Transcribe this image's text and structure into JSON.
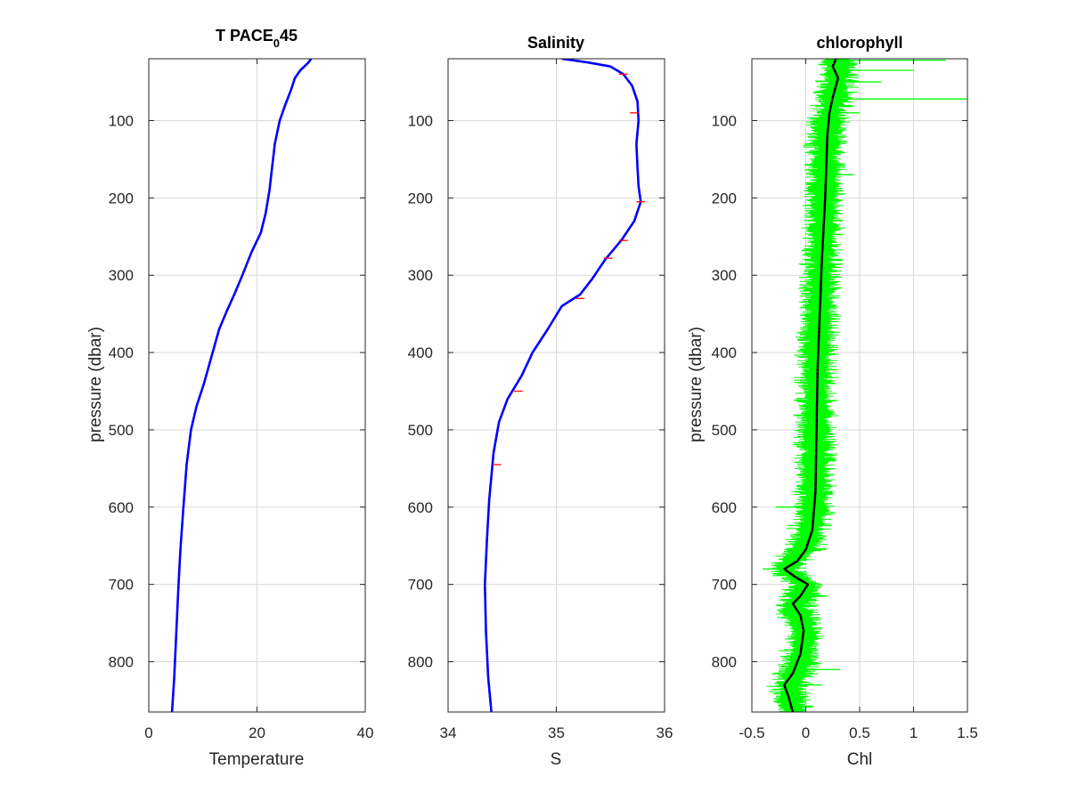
{
  "figure": {
    "panels": [
      {
        "title_main": "T PACE",
        "title_sub": "0",
        "title_tail": "45"
      },
      {
        "title_main": "Salinity",
        "title_sub": "",
        "title_tail": ""
      },
      {
        "title_main": "chlorophyll",
        "title_sub": "",
        "title_tail": ""
      }
    ]
  },
  "chart_data": [
    {
      "type": "line",
      "title": "T PACE_0 45",
      "xlabel": "Temperature",
      "ylabel": "pressure (dbar)",
      "xlim": [
        0,
        40
      ],
      "ylim": [
        20,
        865
      ],
      "y_reversed": true,
      "grid": true,
      "xticks": [
        "0",
        "20",
        "40"
      ],
      "xtick_values": [
        0,
        20,
        40
      ],
      "yticks": [
        "100",
        "200",
        "300",
        "400",
        "500",
        "600",
        "700",
        "800"
      ],
      "ytick_values": [
        100,
        200,
        300,
        400,
        500,
        600,
        700,
        800
      ],
      "series": [
        {
          "color": "#0000ff",
          "points": [
            [
              30.0,
              20
            ],
            [
              29.5,
              25
            ],
            [
              28.0,
              35
            ],
            [
              27.0,
              45
            ],
            [
              26.3,
              60
            ],
            [
              25.2,
              80
            ],
            [
              24.2,
              100
            ],
            [
              23.3,
              130
            ],
            [
              22.8,
              160
            ],
            [
              22.3,
              190
            ],
            [
              21.6,
              220
            ],
            [
              20.7,
              245
            ],
            [
              19.0,
              270
            ],
            [
              17.3,
              300
            ],
            [
              15.8,
              325
            ],
            [
              14.5,
              345
            ],
            [
              13.0,
              370
            ],
            [
              11.8,
              400
            ],
            [
              10.2,
              440
            ],
            [
              8.8,
              470
            ],
            [
              7.8,
              500
            ],
            [
              7.0,
              545
            ],
            [
              6.4,
              600
            ],
            [
              5.9,
              650
            ],
            [
              5.5,
              700
            ],
            [
              5.1,
              760
            ],
            [
              4.7,
              820
            ],
            [
              4.3,
              865
            ]
          ]
        }
      ]
    },
    {
      "type": "line",
      "title": "Salinity",
      "xlabel": "S",
      "ylabel": "",
      "xlim": [
        34,
        36
      ],
      "ylim": [
        20,
        865
      ],
      "y_reversed": true,
      "grid": true,
      "xticks": [
        "34",
        "35",
        "36"
      ],
      "xtick_values": [
        34,
        35,
        36
      ],
      "yticks": [
        "100",
        "200",
        "300",
        "400",
        "500",
        "600",
        "700",
        "800"
      ],
      "ytick_values": [
        100,
        200,
        300,
        400,
        500,
        600,
        700,
        800
      ],
      "series": [
        {
          "color": "#0000ff",
          "points": [
            [
              35.05,
              20
            ],
            [
              35.3,
              25
            ],
            [
              35.5,
              30
            ],
            [
              35.62,
              40
            ],
            [
              35.7,
              55
            ],
            [
              35.75,
              75
            ],
            [
              35.76,
              100
            ],
            [
              35.74,
              130
            ],
            [
              35.75,
              160
            ],
            [
              35.76,
              185
            ],
            [
              35.78,
              205
            ],
            [
              35.72,
              230
            ],
            [
              35.6,
              255
            ],
            [
              35.45,
              280
            ],
            [
              35.33,
              305
            ],
            [
              35.22,
              325
            ],
            [
              35.05,
              340
            ],
            [
              34.92,
              370
            ],
            [
              34.78,
              400
            ],
            [
              34.68,
              430
            ],
            [
              34.55,
              460
            ],
            [
              34.47,
              490
            ],
            [
              34.42,
              530
            ],
            [
              34.38,
              590
            ],
            [
              34.36,
              640
            ],
            [
              34.34,
              700
            ],
            [
              34.35,
              760
            ],
            [
              34.37,
              820
            ],
            [
              34.4,
              865
            ]
          ]
        }
      ]
    },
    {
      "type": "line",
      "title": "chlorophyll",
      "xlabel": "Chl",
      "ylabel": "pressure (dbar)",
      "xlim": [
        -0.5,
        1.5
      ],
      "ylim": [
        20,
        865
      ],
      "y_reversed": true,
      "grid": true,
      "xticks": [
        "-0.5",
        "0",
        "0.5",
        "1",
        "1.5"
      ],
      "xtick_values": [
        -0.5,
        0,
        0.5,
        1,
        1.5
      ],
      "yticks": [
        "100",
        "200",
        "300",
        "400",
        "500",
        "600",
        "700",
        "800"
      ],
      "ytick_values": [
        100,
        200,
        300,
        400,
        500,
        600,
        700,
        800
      ],
      "series": [
        {
          "name": "",
          "style": "band",
          "color": "#00ff00",
          "points": [
            [
              0.3,
              20
            ],
            [
              0.3,
              40
            ],
            [
              0.25,
              80
            ],
            [
              0.2,
              100
            ],
            [
              0.17,
              200
            ],
            [
              0.14,
              300
            ],
            [
              0.1,
              400
            ],
            [
              0.09,
              500
            ],
            [
              0.08,
              600
            ],
            [
              0.0,
              650
            ],
            [
              -0.2,
              680
            ],
            [
              0.0,
              700
            ],
            [
              -0.1,
              730
            ],
            [
              0.0,
              760
            ],
            [
              -0.05,
              800
            ],
            [
              -0.15,
              830
            ],
            [
              -0.12,
              865
            ]
          ],
          "width": 0.18,
          "spikes": [
            [
              1.3,
              22
            ],
            [
              1.0,
              35
            ],
            [
              0.7,
              50
            ],
            [
              1.5,
              72
            ],
            [
              0.5,
              90
            ],
            [
              0.45,
              170
            ],
            [
              -0.28,
              600
            ],
            [
              -0.4,
              680
            ],
            [
              0.2,
              715
            ],
            [
              0.32,
              810
            ],
            [
              0.15,
              830
            ]
          ]
        },
        {
          "color": "#000000",
          "points": [
            [
              0.28,
              20
            ],
            [
              0.25,
              30
            ],
            [
              0.3,
              45
            ],
            [
              0.25,
              70
            ],
            [
              0.22,
              90
            ],
            [
              0.2,
              120
            ],
            [
              0.18,
              200
            ],
            [
              0.15,
              280
            ],
            [
              0.13,
              350
            ],
            [
              0.11,
              420
            ],
            [
              0.1,
              500
            ],
            [
              0.09,
              580
            ],
            [
              0.06,
              630
            ],
            [
              0.0,
              655
            ],
            [
              -0.08,
              670
            ],
            [
              -0.2,
              680
            ],
            [
              -0.1,
              690
            ],
            [
              0.02,
              700
            ],
            [
              -0.05,
              715
            ],
            [
              -0.12,
              725
            ],
            [
              -0.05,
              740
            ],
            [
              -0.02,
              760
            ],
            [
              -0.05,
              790
            ],
            [
              -0.12,
              815
            ],
            [
              -0.2,
              830
            ],
            [
              -0.16,
              845
            ],
            [
              -0.12,
              865
            ]
          ]
        }
      ]
    }
  ]
}
